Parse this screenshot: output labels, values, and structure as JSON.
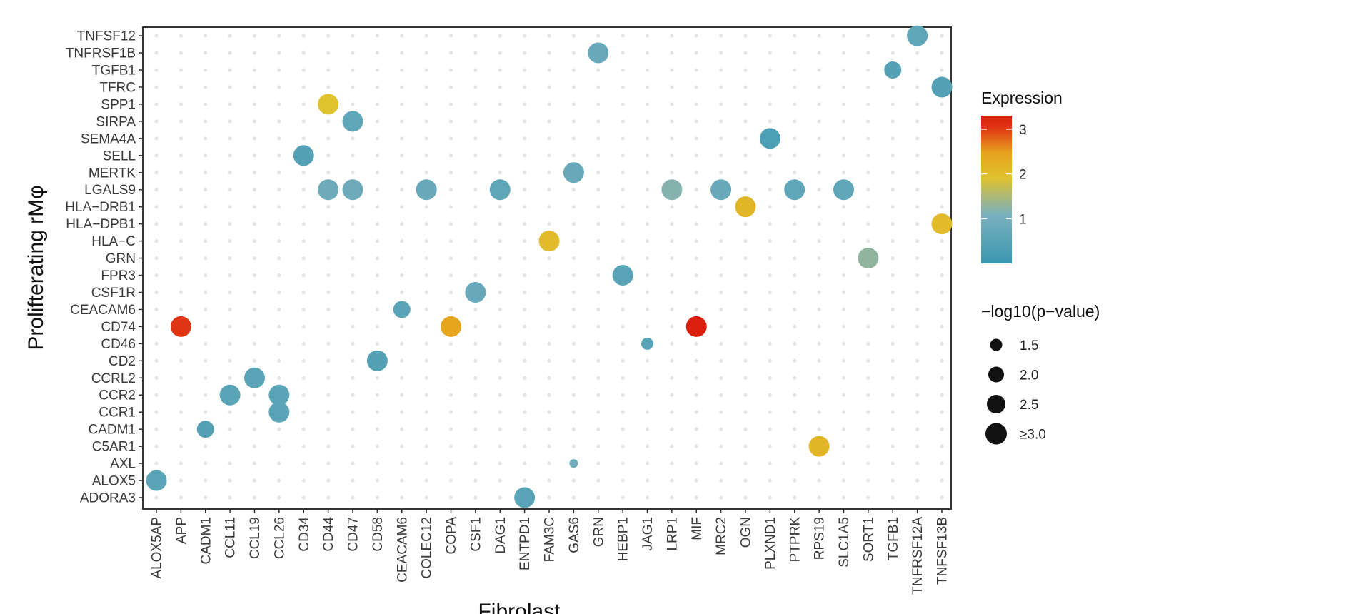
{
  "chart_data": {
    "type": "scatter",
    "xlabel": "Fibrolast",
    "ylabel": "Prolifterating rMφ",
    "x_categories": [
      "ALOX5AP",
      "APP",
      "CADM1",
      "CCL11",
      "CCL19",
      "CCL26",
      "CD34",
      "CD44",
      "CD47",
      "CD58",
      "CEACAM6",
      "COLEC12",
      "COPA",
      "CSF1",
      "DAG1",
      "ENTPD1",
      "FAM3C",
      "GAS6",
      "GRN",
      "HEBP1",
      "JAG1",
      "LRP1",
      "MIF",
      "MRC2",
      "OGN",
      "PLXND1",
      "PTPRK",
      "RPS19",
      "SLC1A5",
      "SORT1",
      "TGFB1",
      "TNFRSF12A",
      "TNFSF13B"
    ],
    "y_categories": [
      "ADORA3",
      "ALOX5",
      "AXL",
      "C5AR1",
      "CADM1",
      "CCR1",
      "CCR2",
      "CCRL2",
      "CD2",
      "CD46",
      "CD74",
      "CEACAM6",
      "CSF1R",
      "FPR3",
      "GRN",
      "HLA−C",
      "HLA−DPB1",
      "HLA−DRB1",
      "LGALS9",
      "MERTK",
      "SELL",
      "SEMA4A",
      "SIRPA",
      "SPP1",
      "TFRC",
      "TGFB1",
      "TNFRSF1B",
      "TNFSF12"
    ],
    "points": [
      {
        "x": "ALOX5AP",
        "y": "ALOX5",
        "expression": 0.5,
        "neg_log10_p": 3.0
      },
      {
        "x": "APP",
        "y": "CD74",
        "expression": 3.0,
        "neg_log10_p": 3.0
      },
      {
        "x": "CADM1",
        "y": "CADM1",
        "expression": 0.4,
        "neg_log10_p": 2.5
      },
      {
        "x": "CCL11",
        "y": "CCR2",
        "expression": 0.5,
        "neg_log10_p": 3.0
      },
      {
        "x": "CCL19",
        "y": "CCRL2",
        "expression": 0.5,
        "neg_log10_p": 3.0
      },
      {
        "x": "CCL26",
        "y": "CCR2",
        "expression": 0.5,
        "neg_log10_p": 3.0
      },
      {
        "x": "CCL26",
        "y": "CCR1",
        "expression": 0.5,
        "neg_log10_p": 3.0
      },
      {
        "x": "CD34",
        "y": "SELL",
        "expression": 0.4,
        "neg_log10_p": 3.0
      },
      {
        "x": "CD44",
        "y": "SPP1",
        "expression": 1.9,
        "neg_log10_p": 3.0
      },
      {
        "x": "CD44",
        "y": "LGALS9",
        "expression": 0.8,
        "neg_log10_p": 3.0
      },
      {
        "x": "CD47",
        "y": "SIRPA",
        "expression": 0.6,
        "neg_log10_p": 3.0
      },
      {
        "x": "CD47",
        "y": "LGALS9",
        "expression": 0.8,
        "neg_log10_p": 3.0
      },
      {
        "x": "CD58",
        "y": "CD2",
        "expression": 0.4,
        "neg_log10_p": 3.0
      },
      {
        "x": "CEACAM6",
        "y": "CEACAM6",
        "expression": 0.5,
        "neg_log10_p": 2.5
      },
      {
        "x": "COLEC12",
        "y": "LGALS9",
        "expression": 0.7,
        "neg_log10_p": 3.0
      },
      {
        "x": "COPA",
        "y": "CD74",
        "expression": 2.4,
        "neg_log10_p": 3.0
      },
      {
        "x": "CSF1",
        "y": "CSF1R",
        "expression": 0.7,
        "neg_log10_p": 3.0
      },
      {
        "x": "DAG1",
        "y": "LGALS9",
        "expression": 0.6,
        "neg_log10_p": 3.0
      },
      {
        "x": "ENTPD1",
        "y": "ADORA3",
        "expression": 0.5,
        "neg_log10_p": 3.0
      },
      {
        "x": "FAM3C",
        "y": "HLA−C",
        "expression": 2.0,
        "neg_log10_p": 3.0
      },
      {
        "x": "GAS6",
        "y": "MERTK",
        "expression": 0.7,
        "neg_log10_p": 3.0
      },
      {
        "x": "GAS6",
        "y": "AXL",
        "expression": 0.8,
        "neg_log10_p": 1.3
      },
      {
        "x": "GRN",
        "y": "TNFRSF1B",
        "expression": 0.7,
        "neg_log10_p": 3.0
      },
      {
        "x": "HEBP1",
        "y": "FPR3",
        "expression": 0.5,
        "neg_log10_p": 3.0
      },
      {
        "x": "JAG1",
        "y": "CD46",
        "expression": 0.5,
        "neg_log10_p": 1.8
      },
      {
        "x": "LRP1",
        "y": "LGALS9",
        "expression": 1.1,
        "neg_log10_p": 3.0
      },
      {
        "x": "MIF",
        "y": "CD74",
        "expression": 3.3,
        "neg_log10_p": 3.0
      },
      {
        "x": "MRC2",
        "y": "LGALS9",
        "expression": 0.7,
        "neg_log10_p": 3.0
      },
      {
        "x": "OGN",
        "y": "HLA−DRB1",
        "expression": 2.1,
        "neg_log10_p": 3.0
      },
      {
        "x": "PLXND1",
        "y": "SEMA4A",
        "expression": 0.3,
        "neg_log10_p": 3.0
      },
      {
        "x": "PTPRK",
        "y": "LGALS9",
        "expression": 0.6,
        "neg_log10_p": 3.0
      },
      {
        "x": "RPS19",
        "y": "C5AR1",
        "expression": 2.1,
        "neg_log10_p": 3.0
      },
      {
        "x": "SLC1A5",
        "y": "LGALS9",
        "expression": 0.6,
        "neg_log10_p": 3.0
      },
      {
        "x": "SORT1",
        "y": "GRN",
        "expression": 1.2,
        "neg_log10_p": 3.0
      },
      {
        "x": "TGFB1",
        "y": "TGFB1",
        "expression": 0.4,
        "neg_log10_p": 2.5
      },
      {
        "x": "TNFRSF12A",
        "y": "TNFSF12",
        "expression": 0.6,
        "neg_log10_p": 3.0
      },
      {
        "x": "TNFSF13B",
        "y": "TFRC",
        "expression": 0.4,
        "neg_log10_p": 3.0
      },
      {
        "x": "TNFSF13B",
        "y": "HLA−DPB1",
        "expression": 2.0,
        "neg_log10_p": 3.0
      }
    ],
    "color_legend": {
      "title": "Expression",
      "ticks": [
        "1",
        "2",
        "3"
      ],
      "tick_values": [
        1,
        2,
        3
      ],
      "range": [
        0,
        3.3
      ],
      "colors": [
        "#3A97B1",
        "#7AB0BE",
        "#E0C12E",
        "#E6A21E",
        "#E03512",
        "#DA1F0C"
      ]
    },
    "size_legend": {
      "title": "−log10(p−value)",
      "labels": [
        "1.5",
        "2.0",
        "2.5",
        "≥3.0"
      ],
      "values": [
        1.5,
        2.0,
        2.5,
        3.0
      ]
    },
    "grid": false,
    "legend_position": "right"
  }
}
